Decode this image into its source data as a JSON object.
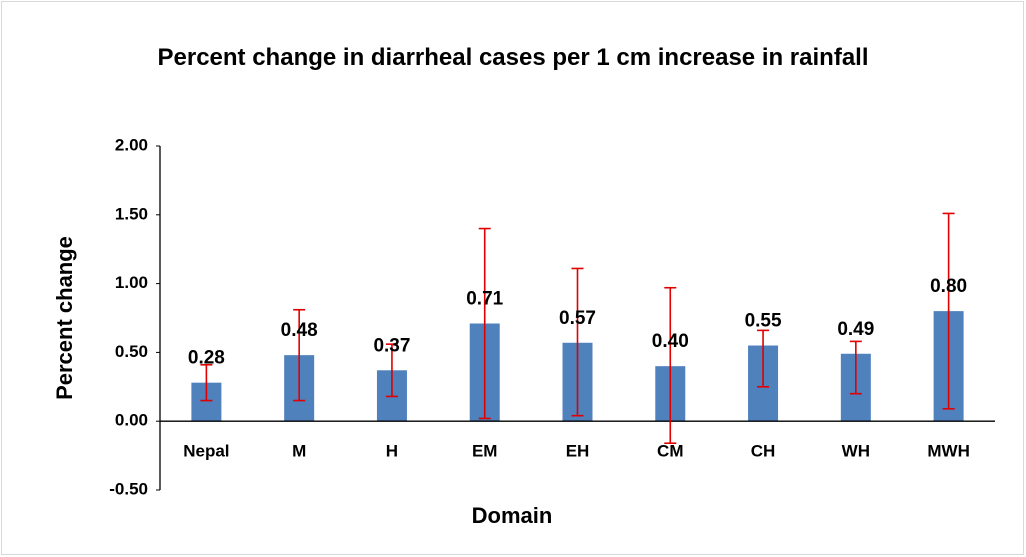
{
  "chart_data": {
    "type": "bar",
    "title": "Percent change in diarrheal cases per 1 cm increase in rainfall",
    "x_label": "Domain",
    "y_label": "Percent change",
    "categories": [
      "Nepal",
      "M",
      "H",
      "EM",
      "EH",
      "CM",
      "CH",
      "WH",
      "MWH"
    ],
    "values": [
      0.28,
      0.48,
      0.37,
      0.71,
      0.57,
      0.4,
      0.55,
      0.49,
      0.8
    ],
    "value_labels": [
      "0.28",
      "0.48",
      "0.37",
      "0.71",
      "0.57",
      "0.40",
      "0.55",
      "0.49",
      "0.80"
    ],
    "ci_low": [
      0.15,
      0.15,
      0.18,
      0.02,
      0.04,
      -0.16,
      0.25,
      0.2,
      0.09
    ],
    "ci_high": [
      0.41,
      0.81,
      0.56,
      1.4,
      1.11,
      0.97,
      0.66,
      0.58,
      1.51
    ],
    "color": "#4f81bd",
    "error_color": "#e00000",
    "ylim": [
      -0.5,
      2.0
    ],
    "yticks": [
      {
        "value": -0.5,
        "label": "-0.50"
      },
      {
        "value": 0,
        "label": "0.00"
      },
      {
        "value": 0.5,
        "label": "0.50"
      },
      {
        "value": 1,
        "label": "1.00"
      },
      {
        "value": 1.5,
        "label": "1.50"
      },
      {
        "value": 2,
        "label": "2.00"
      }
    ],
    "grid": false
  }
}
